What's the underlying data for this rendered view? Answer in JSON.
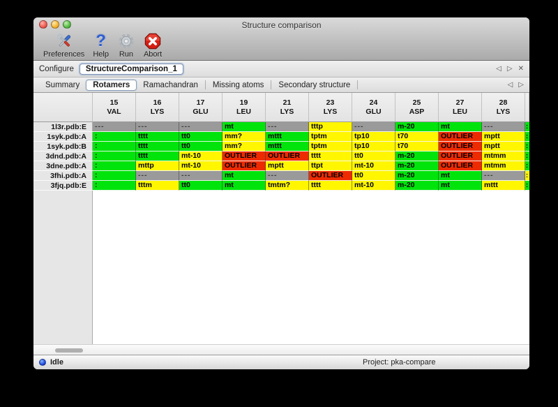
{
  "window": {
    "title": "Structure comparison"
  },
  "toolbar": {
    "preferences": "Preferences",
    "help": "Help",
    "run": "Run",
    "abort": "Abort"
  },
  "configure": {
    "label": "Configure",
    "session": "StructureComparison_1",
    "nav_prev": "◁",
    "nav_next": "▷",
    "nav_close": "✕"
  },
  "tabs": {
    "items": [
      "Summary",
      "Rotamers",
      "Ramachandran",
      "Missing atoms",
      "Secondary structure"
    ],
    "active_index": 1,
    "nav_prev": "◁",
    "nav_next": "▷"
  },
  "colors": {
    "green": "#00E40C",
    "yellow": "#FFF600",
    "red": "#EE2B00",
    "gray": "#9A9A9A"
  },
  "rotamer_table": {
    "columns": [
      {
        "num": "15",
        "res": "VAL"
      },
      {
        "num": "16",
        "res": "LYS"
      },
      {
        "num": "17",
        "res": "GLU"
      },
      {
        "num": "19",
        "res": "LEU"
      },
      {
        "num": "21",
        "res": "LYS"
      },
      {
        "num": "23",
        "res": "LYS"
      },
      {
        "num": "24",
        "res": "GLU"
      },
      {
        "num": "25",
        "res": "ASP"
      },
      {
        "num": "27",
        "res": "LEU"
      },
      {
        "num": "28",
        "res": "LYS"
      }
    ],
    "rows": [
      {
        "label": "1l3r.pdb:E",
        "cells": [
          [
            "---",
            "gray"
          ],
          [
            "---",
            "gray"
          ],
          [
            "---",
            "gray"
          ],
          [
            "mt",
            "green"
          ],
          [
            "---",
            "gray"
          ],
          [
            "tttp",
            "yellow"
          ],
          [
            "---",
            "gray"
          ],
          [
            "m-20",
            "green"
          ],
          [
            "mt",
            "green"
          ],
          [
            "---",
            "gray"
          ]
        ],
        "edge": [
          ":",
          "green"
        ]
      },
      {
        "label": "1syk.pdb:A",
        "cells": [
          [
            ":",
            "green"
          ],
          [
            "tttt",
            "green"
          ],
          [
            "tt0",
            "green"
          ],
          [
            "mm?",
            "yellow"
          ],
          [
            "mttt",
            "green"
          ],
          [
            "tptm",
            "yellow"
          ],
          [
            "tp10",
            "yellow"
          ],
          [
            "t70",
            "yellow"
          ],
          [
            "OUTLIER",
            "red"
          ],
          [
            "mptt",
            "yellow"
          ]
        ],
        "edge": [
          ":",
          "green"
        ]
      },
      {
        "label": "1syk.pdb:B",
        "cells": [
          [
            ":",
            "green"
          ],
          [
            "tttt",
            "green"
          ],
          [
            "tt0",
            "green"
          ],
          [
            "mm?",
            "yellow"
          ],
          [
            "mttt",
            "green"
          ],
          [
            "tptm",
            "yellow"
          ],
          [
            "tp10",
            "yellow"
          ],
          [
            "t70",
            "yellow"
          ],
          [
            "OUTLIER",
            "red"
          ],
          [
            "mptt",
            "yellow"
          ]
        ],
        "edge": [
          ":",
          "green"
        ]
      },
      {
        "label": "3dnd.pdb:A",
        "cells": [
          [
            ":",
            "green"
          ],
          [
            "tttt",
            "green"
          ],
          [
            "mt-10",
            "yellow"
          ],
          [
            "OUTLIER",
            "red"
          ],
          [
            "OUTLIER",
            "red"
          ],
          [
            "tttt",
            "yellow"
          ],
          [
            "tt0",
            "yellow"
          ],
          [
            "m-20",
            "green"
          ],
          [
            "OUTLIER",
            "red"
          ],
          [
            "mtmm",
            "yellow"
          ]
        ],
        "edge": [
          ":",
          "green"
        ]
      },
      {
        "label": "3dne.pdb:A",
        "cells": [
          [
            ":",
            "green"
          ],
          [
            "mttp",
            "yellow"
          ],
          [
            "mt-10",
            "yellow"
          ],
          [
            "OUTLIER",
            "red"
          ],
          [
            "mptt",
            "yellow"
          ],
          [
            "ttpt",
            "yellow"
          ],
          [
            "mt-10",
            "yellow"
          ],
          [
            "m-20",
            "green"
          ],
          [
            "OUTLIER",
            "red"
          ],
          [
            "mtmm",
            "yellow"
          ]
        ],
        "edge": [
          ":",
          "green"
        ]
      },
      {
        "label": "3fhi.pdb:A",
        "cells": [
          [
            ":",
            "green"
          ],
          [
            "---",
            "gray"
          ],
          [
            "---",
            "gray"
          ],
          [
            "mt",
            "green"
          ],
          [
            "---",
            "gray"
          ],
          [
            "OUTLIER",
            "red"
          ],
          [
            "tt0",
            "yellow"
          ],
          [
            "m-20",
            "green"
          ],
          [
            "mt",
            "green"
          ],
          [
            "---",
            "gray"
          ]
        ],
        "edge": [
          ":",
          "yellow"
        ]
      },
      {
        "label": "3fjq.pdb:E",
        "cells": [
          [
            ":",
            "green"
          ],
          [
            "tttm",
            "yellow"
          ],
          [
            "tt0",
            "green"
          ],
          [
            "mt",
            "green"
          ],
          [
            "tmtm?",
            "yellow"
          ],
          [
            "tttt",
            "yellow"
          ],
          [
            "mt-10",
            "yellow"
          ],
          [
            "m-20",
            "green"
          ],
          [
            "mt",
            "green"
          ],
          [
            "mttt",
            "yellow"
          ]
        ],
        "edge": [
          ":",
          "green"
        ]
      }
    ]
  },
  "statusbar": {
    "state": "Idle",
    "project": "Project: pka-compare"
  }
}
